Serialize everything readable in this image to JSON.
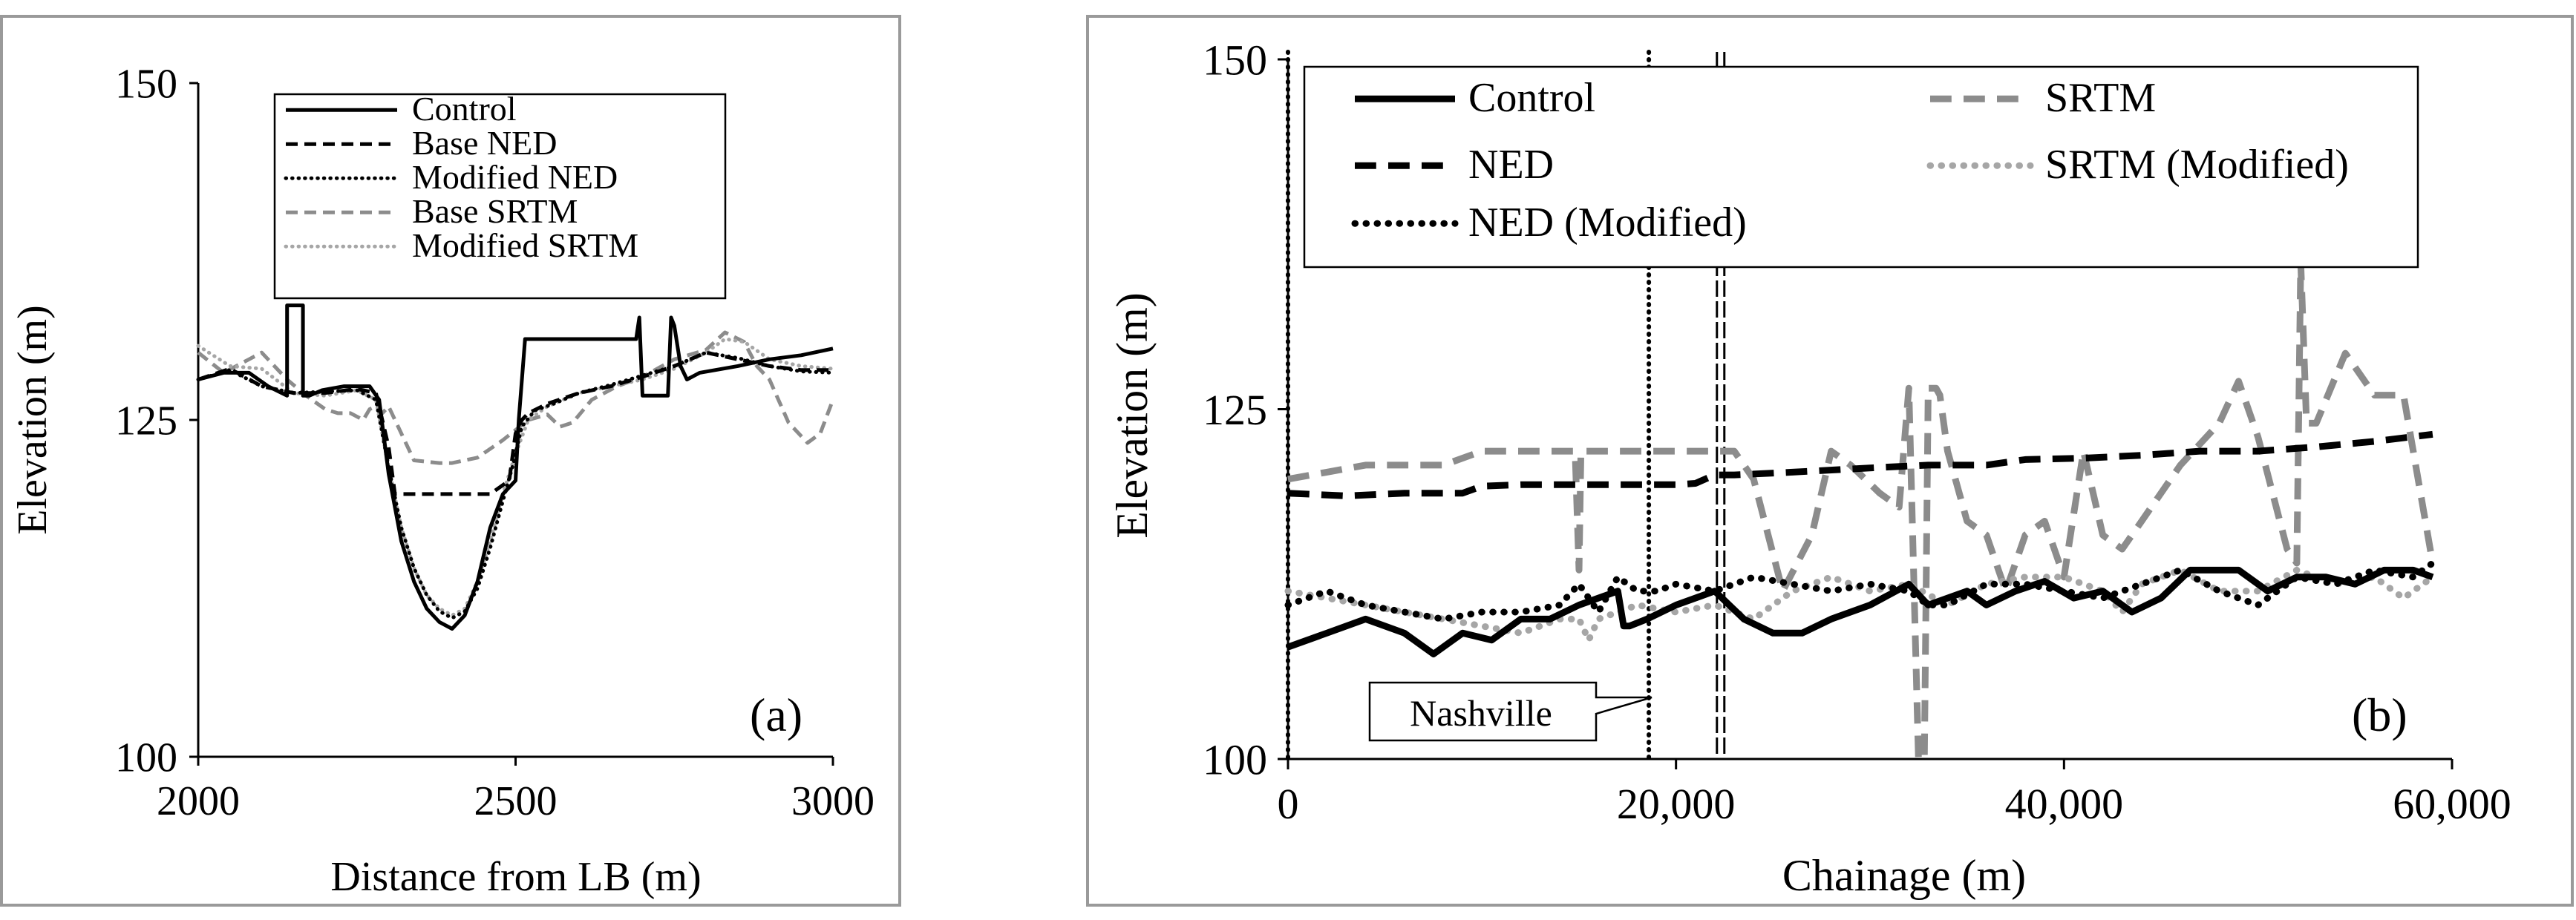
{
  "chart_data": [
    {
      "type": "line",
      "panel_label": "(a)",
      "xlabel": "Distance from LB (m)",
      "ylabel": "Elevation (m)",
      "xlim": [
        2000,
        3000
      ],
      "ylim": [
        100,
        150
      ],
      "xticks": [
        "2000",
        "2500",
        "3000"
      ],
      "yticks": [
        "100",
        "125",
        "150"
      ],
      "xtick_values": [
        2000,
        2500,
        3000
      ],
      "ytick_values": [
        100,
        125,
        150
      ],
      "legend_position": "top-center",
      "series": [
        {
          "name": "Control",
          "color": "#000000",
          "style": "solid",
          "x": [
            2000,
            2040,
            2080,
            2110,
            2140,
            2140,
            2165,
            2165,
            2175,
            2195,
            2230,
            2270,
            2285,
            2300,
            2320,
            2340,
            2360,
            2380,
            2400,
            2420,
            2440,
            2460,
            2480,
            2500,
            2505,
            2515,
            2530,
            2560,
            2600,
            2650,
            2690,
            2695,
            2700,
            2705,
            2740,
            2745,
            2750,
            2760,
            2770,
            2790,
            2850,
            2900,
            2950,
            3000
          ],
          "y": [
            128,
            128.5,
            128.5,
            127.5,
            126.8,
            133.5,
            133.5,
            126.8,
            126.8,
            127.2,
            127.5,
            127.5,
            126.5,
            121,
            116,
            113,
            111,
            110,
            109.5,
            110.5,
            113,
            117,
            119.5,
            120.5,
            125,
            131,
            131,
            131,
            131,
            131,
            131,
            132.6,
            126.8,
            126.8,
            126.8,
            132.6,
            132,
            129,
            128,
            128.5,
            129,
            129.5,
            129.8,
            130.3
          ]
        },
        {
          "name": "Base NED",
          "color": "#000000",
          "style": "dashed",
          "x": [
            2000,
            2050,
            2100,
            2150,
            2200,
            2250,
            2280,
            2300,
            2310,
            2340,
            2380,
            2420,
            2460,
            2490,
            2500,
            2510,
            2520,
            2550,
            2600,
            2650,
            2700,
            2750,
            2800,
            2850,
            2900,
            2950,
            3000
          ],
          "y": [
            128,
            128.8,
            127.5,
            127,
            127,
            127.3,
            127,
            123,
            119.5,
            119.5,
            119.5,
            119.5,
            119.5,
            120.5,
            124,
            125,
            125.5,
            126.2,
            127,
            127.5,
            128.2,
            129,
            130,
            129.5,
            129,
            128.7,
            128.7
          ]
        },
        {
          "name": "Modified NED",
          "color": "#000000",
          "style": "dotted",
          "x": [
            2000,
            2050,
            2100,
            2150,
            2200,
            2250,
            2280,
            2300,
            2320,
            2340,
            2360,
            2380,
            2400,
            2420,
            2440,
            2460,
            2480,
            2495,
            2510,
            2530,
            2560,
            2600,
            2650,
            2700,
            2750,
            2800,
            2850,
            2900,
            2950,
            3000
          ],
          "y": [
            128,
            128.7,
            127.5,
            127,
            127.1,
            127.2,
            126.5,
            121.5,
            117,
            114,
            112,
            110.8,
            110.3,
            110.8,
            112.5,
            115.5,
            119,
            121.5,
            124.5,
            125.7,
            126.2,
            127,
            127.6,
            128.3,
            129,
            130,
            129.6,
            129,
            128.6,
            128.5
          ]
        },
        {
          "name": "Base SRTM",
          "color": "#8c8c8c",
          "style": "dashed",
          "x": [
            2000,
            2040,
            2080,
            2100,
            2140,
            2170,
            2200,
            2220,
            2240,
            2260,
            2270,
            2280,
            2290,
            2300,
            2340,
            2380,
            2400,
            2440,
            2480,
            2520,
            2550,
            2570,
            2590,
            2620,
            2660,
            2700,
            2750,
            2800,
            2830,
            2860,
            2880,
            2900,
            2930,
            2960,
            2980,
            3000
          ],
          "y": [
            130,
            128.5,
            129.5,
            130,
            128,
            126.8,
            125.8,
            125.5,
            125.5,
            125,
            125.8,
            126,
            125.5,
            126,
            122,
            121.8,
            121.8,
            122.2,
            123.5,
            125,
            125.4,
            124.5,
            124.8,
            126.5,
            127.5,
            128.2,
            129.5,
            130.2,
            131.5,
            130.8,
            129,
            128,
            124.8,
            123.3,
            124,
            126.5
          ]
        },
        {
          "name": "Modified SRTM",
          "color": "#a6a6a6",
          "style": "dotted",
          "x": [
            2000,
            2050,
            2100,
            2150,
            2200,
            2250,
            2280,
            2300,
            2320,
            2340,
            2360,
            2380,
            2400,
            2420,
            2440,
            2460,
            2480,
            2500,
            2520,
            2550,
            2600,
            2650,
            2700,
            2750,
            2800,
            2830,
            2860,
            2900,
            2950,
            3000
          ],
          "y": [
            130.5,
            129,
            128.8,
            127,
            126.8,
            127.2,
            126.5,
            121.5,
            117,
            114,
            112,
            111,
            110.5,
            111,
            113,
            116,
            119.5,
            122.5,
            125,
            126,
            127,
            127.5,
            128,
            128.8,
            130,
            131,
            130.8,
            129.5,
            129,
            128.8
          ]
        }
      ]
    },
    {
      "type": "line",
      "panel_label": "(b)",
      "xlabel": "Chainage (m)",
      "ylabel": "Elevation (m)",
      "xlim": [
        0,
        60000
      ],
      "ylim": [
        100,
        150
      ],
      "xticks": [
        "0",
        "20,000",
        "40,000",
        "60,000"
      ],
      "yticks": [
        "100",
        "125",
        "150"
      ],
      "xtick_values": [
        0,
        20000,
        40000,
        60000
      ],
      "ytick_values": [
        100,
        125,
        150
      ],
      "legend_position": "top",
      "annotations": [
        {
          "text": "Nashville",
          "x": 18600
        }
      ],
      "vertical_markers": [
        {
          "x": 0,
          "style": "dotted"
        },
        {
          "x": 18600,
          "style": "dotted"
        },
        {
          "x": 22300,
          "style": "double-dashed"
        }
      ],
      "series": [
        {
          "name": "Control",
          "color": "#000000",
          "style": "solid",
          "x": [
            0,
            2000,
            4000,
            6000,
            7500,
            9000,
            10500,
            12000,
            13500,
            15000,
            16000,
            17000,
            17300,
            17600,
            18500,
            20000,
            22000,
            23500,
            25000,
            26500,
            28000,
            30000,
            32000,
            33000,
            34000,
            35000,
            36000,
            37500,
            39000,
            40500,
            42000,
            43500,
            45000,
            46500,
            48000,
            49000,
            50500,
            52000,
            53500,
            55000,
            56500,
            58000,
            59000
          ],
          "y": [
            108,
            109,
            110,
            109,
            107.5,
            109,
            108.5,
            110,
            110,
            111,
            111.5,
            112,
            109.5,
            109.5,
            110,
            111,
            112,
            110,
            109,
            109,
            110,
            111,
            112.5,
            111,
            111.5,
            112,
            111,
            112,
            112.7,
            111.5,
            112,
            110.5,
            111.5,
            113.5,
            113.5,
            113.5,
            112,
            113,
            113,
            112.5,
            113.5,
            113.5,
            113
          ]
        },
        {
          "name": "NED",
          "color": "#000000",
          "style": "dashed",
          "x": [
            0,
            3000,
            6000,
            9000,
            10000,
            12000,
            15000,
            18000,
            19000,
            20000,
            21000,
            22000,
            23000,
            26000,
            30000,
            33000,
            36000,
            38000,
            41000,
            44000,
            47000,
            50000,
            53000,
            56000,
            59000
          ],
          "y": [
            119,
            118.8,
            119,
            119,
            119.5,
            119.6,
            119.6,
            119.6,
            119.6,
            119.6,
            119.7,
            120.3,
            120.3,
            120.5,
            120.8,
            121,
            121,
            121.4,
            121.5,
            121.7,
            122,
            122,
            122.3,
            122.7,
            123.2
          ]
        },
        {
          "name": "NED (Modified)",
          "color": "#000000",
          "style": "dotted",
          "x": [
            0,
            2000,
            4000,
            6000,
            8000,
            10000,
            12000,
            14000,
            15000,
            16000,
            17000,
            18000,
            19000,
            20000,
            22000,
            24000,
            26000,
            28000,
            30000,
            32000,
            33000,
            34000,
            36000,
            38000,
            40000,
            42000,
            44000,
            46000,
            48000,
            50000,
            52000,
            54000,
            56000,
            58000,
            59000
          ],
          "y": [
            111,
            112,
            111,
            110.5,
            110,
            110.5,
            110.5,
            111,
            112.5,
            110.5,
            113,
            112,
            112,
            112.5,
            112,
            113,
            112.5,
            112,
            112.5,
            112,
            111,
            111,
            112.5,
            112.5,
            112,
            111.5,
            112.5,
            113.5,
            112,
            111,
            113,
            112.5,
            113.5,
            113,
            114
          ]
        },
        {
          "name": "SRTM",
          "color": "#8c8c8c",
          "style": "dashed",
          "x": [
            0,
            2000,
            4000,
            6000,
            8000,
            10000,
            12000,
            14000,
            14800,
            15000,
            15100,
            15300,
            17000,
            17500,
            18000,
            19000,
            20000,
            22000,
            23000,
            24000,
            25500,
            27000,
            28000,
            29000,
            30500,
            31500,
            32000,
            32500,
            32600,
            32800,
            33000,
            33400,
            33600,
            34000,
            35000,
            36000,
            37000,
            38000,
            39000,
            40000,
            41000,
            42000,
            43000,
            44000,
            46000,
            48000,
            49000,
            50000,
            51500,
            52000,
            52200,
            52500,
            53000,
            54500,
            56000,
            57500,
            59000
          ],
          "y": [
            120,
            120.5,
            121,
            121,
            121,
            122,
            122,
            122,
            122,
            113.5,
            122,
            122,
            122,
            122,
            122,
            122,
            122,
            122,
            122,
            120,
            112,
            116,
            122,
            121,
            119,
            118,
            126.5,
            100,
            100,
            100,
            126.5,
            126.5,
            126,
            122,
            117,
            116,
            112,
            116,
            117,
            113,
            122,
            116,
            115,
            117,
            121,
            124,
            127,
            123,
            115,
            114,
            135.5,
            124,
            124,
            129,
            126,
            126,
            114
          ]
        },
        {
          "name": "SRTM (Modified)",
          "color": "#a6a6a6",
          "style": "dotted",
          "x": [
            0,
            2000,
            4000,
            6000,
            8000,
            10000,
            12000,
            14000,
            15000,
            15500,
            16000,
            17000,
            18000,
            20000,
            22000,
            24000,
            26000,
            28000,
            30000,
            32000,
            34000,
            36000,
            38000,
            40000,
            42000,
            43000,
            44000,
            46000,
            48000,
            50000,
            52000,
            54000,
            56000,
            57500,
            58500,
            59000
          ],
          "y": [
            112,
            111.5,
            111,
            110.5,
            110,
            109.5,
            109,
            110,
            110,
            108.5,
            110,
            110.5,
            111,
            110.5,
            111,
            110,
            112,
            113,
            112,
            112.5,
            111,
            112.5,
            113,
            113,
            112,
            110.5,
            112.5,
            113.5,
            112,
            112,
            113.5,
            112.5,
            113,
            111.5,
            112.5,
            113
          ]
        }
      ]
    }
  ]
}
